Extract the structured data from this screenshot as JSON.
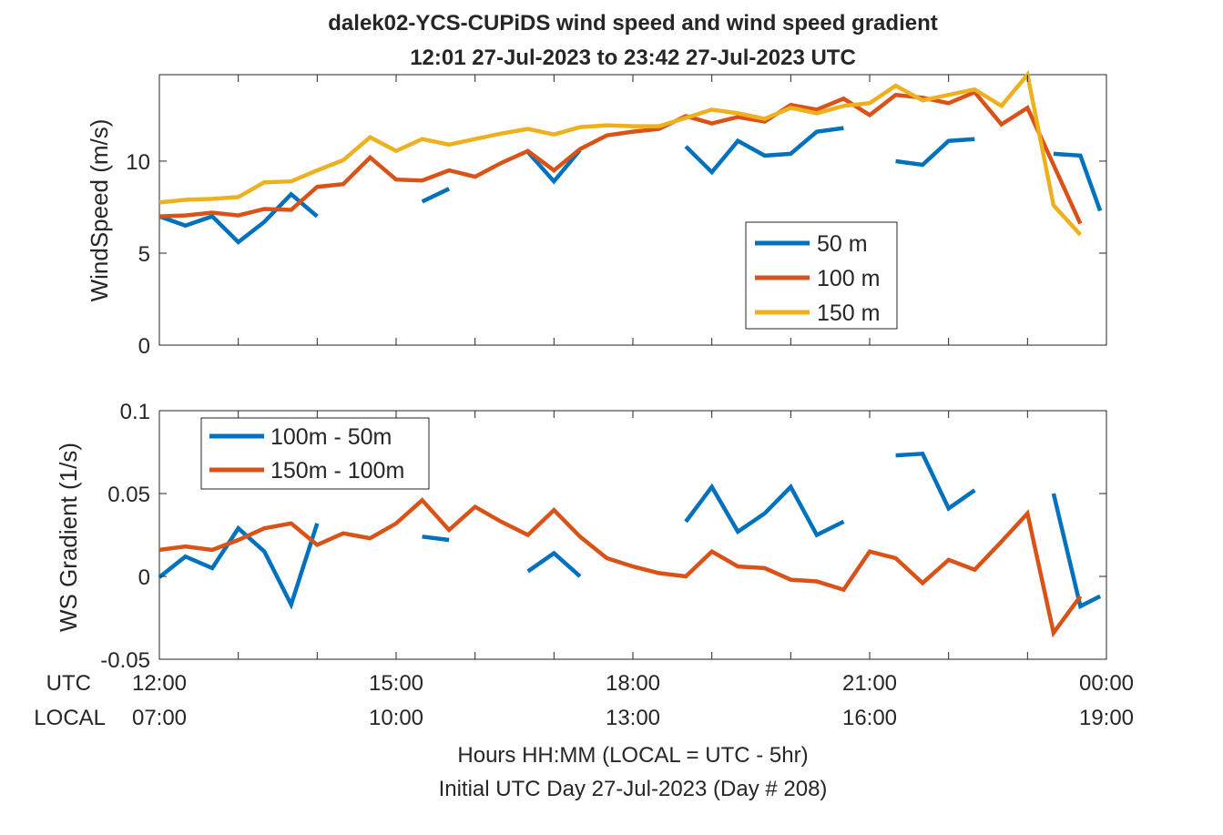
{
  "title_line1": "dalek02-YCS-CUPiDS  wind speed and wind speed gradient",
  "title_line2": "12:01 27-Jul-2023 to 23:42 27-Jul-2023  UTC",
  "row_labels": {
    "utc": "UTC",
    "local": "LOCAL"
  },
  "xlabel_line1": "Hours HH:MM  (LOCAL = UTC - 5hr)",
  "xlabel_line2": "Initial UTC Day 27-Jul-2023 (Day # 208)",
  "colors": {
    "blue": "#0072BD",
    "orange": "#D95319",
    "yellow": "#EDB120",
    "axis": "#262626"
  },
  "chart_data": [
    {
      "type": "line",
      "ylabel": "WindSpeed (m/s)",
      "ylim": [
        0,
        14.7
      ],
      "yticks": [
        0,
        5,
        10
      ],
      "xlim": [
        12.0,
        24.0
      ],
      "xticks": [
        12,
        15,
        18,
        21,
        24
      ],
      "xtick_labels_utc": [
        "12:00",
        "15:00",
        "18:00",
        "21:00",
        "00:00"
      ],
      "xtick_labels_local": [
        "07:00",
        "10:00",
        "13:00",
        "16:00",
        "19:00"
      ],
      "legend_position": "middle-right",
      "series": [
        {
          "name": "50 m",
          "color": "#0072BD",
          "x": [
            12.0,
            12.33,
            12.67,
            13.0,
            13.33,
            13.67,
            14.0,
            14.33,
            14.67,
            15.0,
            15.33,
            15.67,
            16.0,
            16.33,
            16.67,
            17.0,
            17.33,
            17.67,
            18.0,
            18.33,
            18.67,
            19.0,
            19.33,
            19.67,
            20.0,
            20.33,
            20.67,
            21.0,
            21.33,
            21.67,
            22.0,
            22.33,
            22.67,
            23.0,
            23.33,
            23.67,
            23.92
          ],
          "y": [
            7.0,
            6.5,
            7.0,
            5.6,
            6.7,
            8.2,
            7.0,
            null,
            null,
            null,
            7.8,
            8.5,
            null,
            null,
            10.5,
            8.9,
            10.6,
            null,
            null,
            null,
            10.8,
            9.4,
            11.1,
            10.3,
            10.4,
            11.6,
            11.8,
            null,
            10.0,
            9.8,
            11.1,
            11.2,
            null,
            null,
            10.4,
            10.3,
            7.3
          ]
        },
        {
          "name": "100 m",
          "color": "#D95319",
          "x": [
            12.0,
            12.33,
            12.67,
            13.0,
            13.33,
            13.67,
            14.0,
            14.33,
            14.67,
            15.0,
            15.33,
            15.67,
            16.0,
            16.33,
            16.67,
            17.0,
            17.33,
            17.67,
            18.0,
            18.33,
            18.67,
            19.0,
            19.33,
            19.67,
            20.0,
            20.33,
            20.67,
            21.0,
            21.33,
            21.67,
            22.0,
            22.33,
            22.67,
            23.0,
            23.33,
            23.67,
            23.92
          ],
          "y": [
            7.0,
            7.05,
            7.2,
            7.05,
            7.4,
            7.35,
            8.6,
            8.75,
            10.2,
            9.0,
            8.95,
            9.5,
            9.15,
            9.9,
            10.55,
            9.5,
            10.65,
            11.4,
            11.6,
            11.75,
            12.45,
            12.05,
            12.4,
            12.15,
            13.05,
            12.8,
            13.4,
            12.5,
            13.6,
            13.45,
            13.15,
            13.75,
            12.0,
            12.9,
            9.8,
            6.6,
            null
          ]
        },
        {
          "name": "150 m",
          "color": "#EDB120",
          "x": [
            12.0,
            12.33,
            12.67,
            13.0,
            13.33,
            13.67,
            14.0,
            14.33,
            14.67,
            15.0,
            15.33,
            15.67,
            16.0,
            16.33,
            16.67,
            17.0,
            17.33,
            17.67,
            18.0,
            18.33,
            18.67,
            19.0,
            19.33,
            19.67,
            20.0,
            20.33,
            20.67,
            21.0,
            21.33,
            21.67,
            22.0,
            22.33,
            22.67,
            23.0,
            23.33,
            23.67,
            23.92
          ],
          "y": [
            7.75,
            7.9,
            7.95,
            8.05,
            8.85,
            8.9,
            9.5,
            10.05,
            11.3,
            10.55,
            11.2,
            10.9,
            11.2,
            11.5,
            11.75,
            11.45,
            11.85,
            11.95,
            11.9,
            11.9,
            12.35,
            12.8,
            12.6,
            12.3,
            12.9,
            12.6,
            13.0,
            13.15,
            14.1,
            13.3,
            13.6,
            13.9,
            13.0,
            14.7,
            7.6,
            6.0,
            null
          ]
        }
      ]
    },
    {
      "type": "line",
      "ylabel": "WS Gradient (1/s)",
      "ylim": [
        -0.05,
        0.1
      ],
      "yticks": [
        -0.05,
        0,
        0.05,
        0.1
      ],
      "ytick_labels": [
        "-0.05",
        "0",
        "0.05",
        "0.1"
      ],
      "xlim": [
        12.0,
        24.0
      ],
      "xticks": [
        12,
        15,
        18,
        21,
        24
      ],
      "legend_position": "top-left",
      "series": [
        {
          "name": "100m - 50m",
          "color": "#0072BD",
          "x": [
            12.0,
            12.33,
            12.67,
            13.0,
            13.33,
            13.67,
            14.0,
            14.33,
            14.67,
            15.0,
            15.33,
            15.67,
            16.0,
            16.33,
            16.67,
            17.0,
            17.33,
            17.67,
            18.0,
            18.33,
            18.67,
            19.0,
            19.33,
            19.67,
            20.0,
            20.33,
            20.67,
            21.0,
            21.33,
            21.67,
            22.0,
            22.33,
            22.67,
            23.0,
            23.33,
            23.67,
            23.92
          ],
          "y": [
            -0.0005,
            0.012,
            0.005,
            0.029,
            0.015,
            -0.017,
            0.032,
            null,
            null,
            null,
            0.024,
            0.022,
            null,
            null,
            0.003,
            0.014,
            0.0,
            null,
            null,
            null,
            0.033,
            0.054,
            0.027,
            0.038,
            0.054,
            0.025,
            0.033,
            null,
            0.073,
            0.074,
            0.041,
            0.052,
            null,
            null,
            0.05,
            -0.018,
            -0.012
          ]
        },
        {
          "name": "150m - 100m",
          "color": "#D95319",
          "x": [
            12.0,
            12.33,
            12.67,
            13.0,
            13.33,
            13.67,
            14.0,
            14.33,
            14.67,
            15.0,
            15.33,
            15.67,
            16.0,
            16.33,
            16.67,
            17.0,
            17.33,
            17.67,
            18.0,
            18.33,
            18.67,
            19.0,
            19.33,
            19.67,
            20.0,
            20.33,
            20.67,
            21.0,
            21.33,
            21.67,
            22.0,
            22.33,
            22.67,
            23.0,
            23.33,
            23.67,
            23.92
          ],
          "y": [
            0.016,
            0.018,
            0.016,
            0.022,
            0.029,
            0.032,
            0.019,
            0.026,
            0.023,
            0.032,
            0.046,
            0.028,
            0.042,
            0.033,
            0.025,
            0.04,
            0.024,
            0.011,
            0.006,
            0.002,
            0.0,
            0.015,
            0.006,
            0.005,
            -0.002,
            -0.003,
            -0.008,
            0.015,
            0.011,
            -0.004,
            0.01,
            0.004,
            0.021,
            0.038,
            -0.034,
            -0.012,
            null
          ]
        }
      ]
    }
  ]
}
